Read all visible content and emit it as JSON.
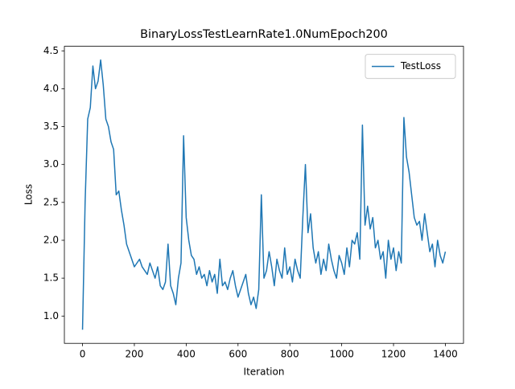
{
  "chart_data": {
    "type": "line",
    "title": "BinaryLossTestLearnRate1.0NumEpoch200",
    "x_label": "Iteration",
    "y_label": "Loss",
    "x": [
      0,
      10,
      20,
      30,
      40,
      50,
      60,
      70,
      80,
      90,
      100,
      110,
      120,
      130,
      140,
      150,
      160,
      170,
      180,
      190,
      200,
      210,
      220,
      230,
      240,
      250,
      260,
      270,
      280,
      290,
      300,
      310,
      320,
      330,
      340,
      350,
      360,
      370,
      380,
      390,
      400,
      410,
      420,
      430,
      440,
      450,
      460,
      470,
      480,
      490,
      500,
      510,
      520,
      530,
      540,
      550,
      560,
      570,
      580,
      590,
      600,
      610,
      620,
      630,
      640,
      650,
      660,
      670,
      680,
      690,
      700,
      710,
      720,
      730,
      740,
      750,
      760,
      770,
      780,
      790,
      800,
      810,
      820,
      830,
      840,
      850,
      860,
      870,
      880,
      890,
      900,
      910,
      920,
      930,
      940,
      950,
      960,
      970,
      980,
      990,
      1000,
      1010,
      1020,
      1030,
      1040,
      1050,
      1060,
      1070,
      1080,
      1090,
      1100,
      1110,
      1120,
      1130,
      1140,
      1150,
      1160,
      1170,
      1180,
      1190,
      1200,
      1210,
      1220,
      1230,
      1240,
      1250,
      1260,
      1270,
      1280,
      1290,
      1300,
      1310,
      1320,
      1330,
      1340,
      1350,
      1360,
      1370,
      1380,
      1390,
      1400
    ],
    "series": [
      {
        "name": "TestLoss",
        "color": "#1f77b4",
        "values": [
          0.82,
          2.5,
          3.6,
          3.75,
          4.3,
          4.0,
          4.1,
          4.38,
          4.05,
          3.6,
          3.5,
          3.3,
          3.2,
          2.6,
          2.65,
          2.4,
          2.2,
          1.95,
          1.85,
          1.75,
          1.65,
          1.7,
          1.75,
          1.65,
          1.6,
          1.55,
          1.7,
          1.6,
          1.5,
          1.65,
          1.4,
          1.35,
          1.45,
          1.95,
          1.4,
          1.3,
          1.15,
          1.5,
          1.7,
          3.38,
          2.3,
          2.0,
          1.8,
          1.75,
          1.55,
          1.65,
          1.5,
          1.55,
          1.4,
          1.6,
          1.45,
          1.55,
          1.3,
          1.75,
          1.4,
          1.45,
          1.35,
          1.5,
          1.6,
          1.4,
          1.25,
          1.35,
          1.45,
          1.55,
          1.3,
          1.15,
          1.25,
          1.1,
          1.35,
          2.6,
          1.5,
          1.6,
          1.85,
          1.65,
          1.4,
          1.75,
          1.6,
          1.5,
          1.9,
          1.55,
          1.65,
          1.45,
          1.75,
          1.6,
          1.5,
          2.3,
          3.0,
          2.1,
          2.35,
          1.9,
          1.7,
          1.85,
          1.55,
          1.75,
          1.6,
          1.95,
          1.75,
          1.6,
          1.5,
          1.8,
          1.7,
          1.55,
          1.9,
          1.65,
          2.0,
          1.95,
          2.1,
          1.75,
          3.52,
          2.2,
          2.45,
          2.15,
          2.3,
          1.9,
          2.0,
          1.75,
          1.85,
          1.5,
          2.0,
          1.75,
          1.9,
          1.6,
          1.85,
          1.7,
          3.62,
          3.1,
          2.9,
          2.6,
          2.3,
          2.2,
          2.25,
          2.0,
          2.35,
          2.1,
          1.85,
          1.95,
          1.65,
          2.0,
          1.8,
          1.7,
          1.85
        ]
      }
    ],
    "xlim": [
      -70,
      1470
    ],
    "ylim": [
      0.64,
      4.56
    ],
    "xticks": [
      0,
      200,
      400,
      600,
      800,
      1000,
      1200,
      1400
    ],
    "yticks": [
      {
        "value": 1,
        "label": "1.0"
      },
      1.5,
      {
        "value": 2,
        "label": "2.0"
      },
      2.5,
      {
        "value": 3,
        "label": "3.0"
      },
      3.5,
      {
        "value": 4,
        "label": "4.0"
      },
      4.5
    ],
    "legend": "upper right"
  }
}
